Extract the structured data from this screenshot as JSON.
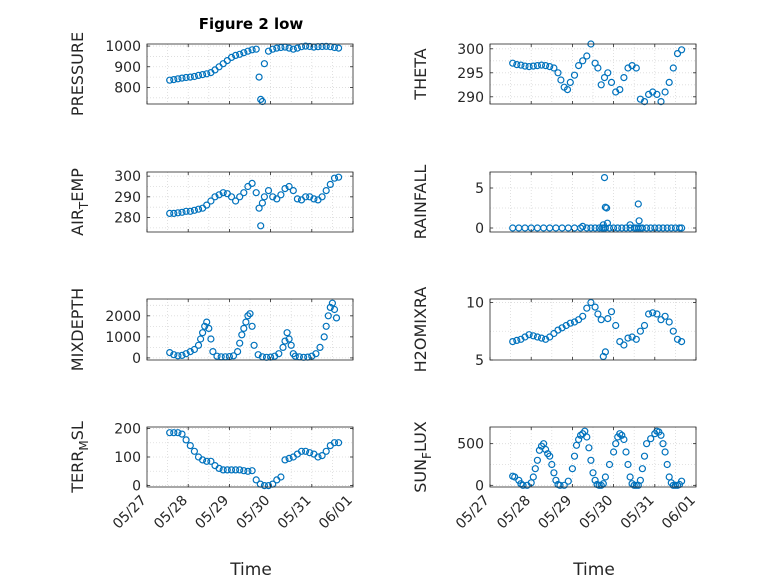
{
  "title": "Figure 2 low",
  "x_axis_label": "Time",
  "x_tick_labels": [
    "05/27",
    "05/28",
    "05/29",
    "05/30",
    "05/31",
    "06/01"
  ],
  "marker_color": "#0072BD",
  "chart_data": [
    {
      "type": "scatter",
      "ylabel": "PRESSURE",
      "ylim": [
        720,
        1010
      ],
      "yticks": [
        800,
        900,
        1000
      ],
      "grid": true,
      "x": [
        0.55,
        0.65,
        0.75,
        0.85,
        0.95,
        1.05,
        1.15,
        1.25,
        1.35,
        1.45,
        1.55,
        1.65,
        1.75,
        1.85,
        1.95,
        2.05,
        2.15,
        2.25,
        2.35,
        2.45,
        2.55,
        2.65,
        2.72,
        2.76,
        2.8,
        2.85,
        2.95,
        3.05,
        3.15,
        3.25,
        3.35,
        3.45,
        3.55,
        3.65,
        3.75,
        3.85,
        3.95,
        4.05,
        4.15,
        4.25,
        4.35,
        4.45,
        4.55,
        4.65
      ],
      "y": [
        835,
        838,
        842,
        845,
        848,
        850,
        853,
        858,
        862,
        866,
        872,
        885,
        900,
        915,
        930,
        945,
        955,
        960,
        968,
        975,
        982,
        985,
        850,
        742,
        732,
        915,
        975,
        985,
        990,
        993,
        995,
        990,
        985,
        990,
        997,
        1000,
        998,
        995,
        997,
        998,
        999,
        997,
        993,
        990
      ]
    },
    {
      "type": "scatter",
      "ylabel": "THETA",
      "ylim": [
        288.5,
        301
      ],
      "yticks": [
        290,
        295,
        300
      ],
      "grid": true,
      "x": [
        0.55,
        0.65,
        0.75,
        0.85,
        0.95,
        1.05,
        1.15,
        1.25,
        1.35,
        1.45,
        1.55,
        1.65,
        1.72,
        1.8,
        1.88,
        1.95,
        2.05,
        2.15,
        2.25,
        2.35,
        2.45,
        2.55,
        2.62,
        2.7,
        2.78,
        2.86,
        2.95,
        3.05,
        3.15,
        3.25,
        3.35,
        3.45,
        3.55,
        3.65,
        3.75,
        3.85,
        3.95,
        4.05,
        4.15,
        4.25,
        4.35,
        4.45,
        4.55,
        4.65
      ],
      "y": [
        297,
        296.7,
        296.6,
        296.4,
        296.3,
        296.4,
        296.5,
        296.6,
        296.5,
        296.3,
        296,
        295,
        293.5,
        292,
        291.5,
        293,
        294.5,
        296.5,
        297.5,
        298.5,
        301,
        297,
        296,
        292.5,
        294,
        295,
        293,
        291,
        291.5,
        294,
        296,
        296.5,
        296,
        289.5,
        289,
        290.5,
        291,
        290.5,
        289,
        291,
        293,
        296,
        299,
        299.8
      ]
    },
    {
      "type": "scatter",
      "ylabel": "AIR_TEMP",
      "ylim": [
        273,
        302
      ],
      "yticks": [
        280,
        290,
        300
      ],
      "grid": true,
      "x": [
        0.55,
        0.65,
        0.75,
        0.85,
        0.95,
        1.05,
        1.15,
        1.25,
        1.35,
        1.45,
        1.55,
        1.65,
        1.75,
        1.85,
        1.95,
        2.05,
        2.15,
        2.25,
        2.35,
        2.45,
        2.55,
        2.65,
        2.72,
        2.76,
        2.8,
        2.85,
        2.95,
        3.05,
        3.15,
        3.25,
        3.35,
        3.45,
        3.55,
        3.65,
        3.75,
        3.85,
        3.95,
        4.05,
        4.15,
        4.25,
        4.35,
        4.45,
        4.55,
        4.65
      ],
      "y": [
        282,
        282,
        282.3,
        282.5,
        283,
        283,
        283.5,
        284,
        284.5,
        286,
        288,
        290,
        291,
        292,
        291.5,
        290,
        288,
        290,
        292,
        295,
        296.5,
        292,
        284.5,
        276,
        287,
        290,
        293,
        290,
        289,
        291,
        294,
        295,
        293,
        289,
        288.5,
        290,
        290,
        289,
        288.5,
        290,
        293,
        296,
        299,
        299.5
      ]
    },
    {
      "type": "scatter",
      "ylabel": "RAINFALL",
      "ylim": [
        -0.5,
        7
      ],
      "yticks": [
        0,
        5
      ],
      "grid": true,
      "x": [
        0.55,
        0.7,
        0.85,
        1.0,
        1.15,
        1.3,
        1.45,
        1.6,
        1.75,
        1.9,
        2.05,
        2.2,
        2.35,
        2.45,
        2.55,
        2.65,
        2.72,
        2.76,
        2.8,
        2.9,
        3.0,
        3.1,
        3.2,
        3.3,
        3.4,
        3.5,
        3.55,
        3.6,
        3.65,
        3.7,
        3.8,
        3.9,
        4.0,
        4.1,
        4.2,
        4.3,
        4.4,
        4.5,
        4.6,
        4.65,
        2.78,
        2.8,
        2.83,
        2.85,
        2.75,
        3.6,
        3.62,
        3.4,
        2.25
      ],
      "y": [
        0,
        0,
        0,
        0,
        0,
        0,
        0,
        0,
        0,
        0,
        0,
        0,
        0,
        0,
        0,
        0,
        0,
        0,
        0,
        0,
        0,
        0,
        0,
        0,
        0,
        0,
        0,
        0,
        0,
        0,
        0,
        0,
        0,
        0,
        0,
        0,
        0,
        0,
        0,
        0,
        6.3,
        2.6,
        2.5,
        0.6,
        0.4,
        3.0,
        0.9,
        0.4,
        0.2
      ]
    },
    {
      "type": "scatter",
      "ylabel": "MIXDEPTH",
      "ylim": [
        -100,
        2800
      ],
      "yticks": [
        0,
        1000,
        2000
      ],
      "grid": true,
      "x": [
        0.55,
        0.65,
        0.75,
        0.85,
        0.95,
        1.05,
        1.15,
        1.25,
        1.3,
        1.35,
        1.4,
        1.45,
        1.5,
        1.55,
        1.6,
        1.7,
        1.8,
        1.9,
        2.0,
        2.1,
        2.2,
        2.25,
        2.3,
        2.35,
        2.4,
        2.45,
        2.5,
        2.55,
        2.6,
        2.7,
        2.8,
        2.9,
        3.0,
        3.1,
        3.2,
        3.3,
        3.35,
        3.4,
        3.45,
        3.5,
        3.55,
        3.6,
        3.7,
        3.8,
        3.9,
        4.0,
        4.1,
        4.2,
        4.3,
        4.35,
        4.4,
        4.45,
        4.5,
        4.55,
        4.6
      ],
      "y": [
        250,
        150,
        100,
        120,
        200,
        300,
        400,
        600,
        900,
        1200,
        1500,
        1700,
        1400,
        900,
        300,
        80,
        50,
        50,
        60,
        100,
        300,
        700,
        1100,
        1400,
        1700,
        2000,
        2100,
        1500,
        600,
        150,
        50,
        30,
        40,
        80,
        200,
        500,
        800,
        1200,
        900,
        600,
        200,
        80,
        50,
        30,
        40,
        80,
        200,
        500,
        1000,
        1500,
        2000,
        2400,
        2600,
        2300,
        1900
      ]
    },
    {
      "type": "scatter",
      "ylabel": "H2OMIXRA",
      "ylim": [
        5,
        10.3
      ],
      "yticks": [
        5,
        10
      ],
      "grid": true,
      "x": [
        0.55,
        0.65,
        0.75,
        0.85,
        0.95,
        1.05,
        1.15,
        1.25,
        1.35,
        1.45,
        1.55,
        1.65,
        1.75,
        1.85,
        1.95,
        2.05,
        2.15,
        2.25,
        2.35,
        2.45,
        2.55,
        2.62,
        2.7,
        2.75,
        2.8,
        2.86,
        2.95,
        3.05,
        3.15,
        3.25,
        3.35,
        3.45,
        3.55,
        3.65,
        3.75,
        3.85,
        3.95,
        4.05,
        4.15,
        4.25,
        4.35,
        4.45,
        4.55,
        4.65
      ],
      "y": [
        6.6,
        6.7,
        6.8,
        7.0,
        7.2,
        7.1,
        7.0,
        6.9,
        6.8,
        7.0,
        7.3,
        7.6,
        7.8,
        8.0,
        8.2,
        8.3,
        8.5,
        8.8,
        9.5,
        10.0,
        9.6,
        9.0,
        8.5,
        5.3,
        5.7,
        8.6,
        9.2,
        8.0,
        6.6,
        6.3,
        6.9,
        7.0,
        6.8,
        7.5,
        8.0,
        9.0,
        9.1,
        9.0,
        8.5,
        8.8,
        8.3,
        7.5,
        6.8,
        6.6
      ]
    },
    {
      "type": "scatter",
      "ylabel": "TERR_MSL",
      "ylim": [
        -5,
        205
      ],
      "yticks": [
        0,
        100,
        200
      ],
      "grid": true,
      "x": [
        0.55,
        0.65,
        0.75,
        0.85,
        0.95,
        1.05,
        1.15,
        1.25,
        1.35,
        1.45,
        1.55,
        1.65,
        1.75,
        1.85,
        1.95,
        2.05,
        2.15,
        2.25,
        2.35,
        2.45,
        2.55,
        2.65,
        2.75,
        2.85,
        2.95,
        3.05,
        3.15,
        3.25,
        3.35,
        3.45,
        3.55,
        3.65,
        3.75,
        3.85,
        3.95,
        4.05,
        4.15,
        4.25,
        4.35,
        4.45,
        4.55,
        4.65
      ],
      "y": [
        185,
        185,
        185,
        180,
        160,
        140,
        120,
        100,
        90,
        85,
        85,
        70,
        60,
        55,
        55,
        55,
        55,
        55,
        52,
        50,
        52,
        20,
        5,
        0,
        0,
        5,
        20,
        30,
        90,
        95,
        100,
        110,
        120,
        120,
        115,
        110,
        100,
        105,
        120,
        140,
        150,
        150
      ]
    },
    {
      "type": "scatter",
      "ylabel": "SUN_FLUX",
      "ylim": [
        -20,
        700
      ],
      "yticks": [
        0,
        500
      ],
      "grid": true,
      "x": [
        0.55,
        0.6,
        0.7,
        0.75,
        0.8,
        0.9,
        1.0,
        1.05,
        1.1,
        1.15,
        1.2,
        1.25,
        1.3,
        1.35,
        1.4,
        1.45,
        1.5,
        1.55,
        1.6,
        1.65,
        1.7,
        1.8,
        1.9,
        2.0,
        2.05,
        2.1,
        2.15,
        2.2,
        2.25,
        2.3,
        2.35,
        2.4,
        2.45,
        2.5,
        2.55,
        2.6,
        2.65,
        2.7,
        2.75,
        2.8,
        2.9,
        3.0,
        3.05,
        3.1,
        3.15,
        3.2,
        3.25,
        3.3,
        3.35,
        3.4,
        3.45,
        3.5,
        3.55,
        3.6,
        3.65,
        3.7,
        3.75,
        3.8,
        3.9,
        4.0,
        4.05,
        4.1,
        4.15,
        4.2,
        4.25,
        4.3,
        4.35,
        4.4,
        4.45,
        4.5,
        4.55,
        4.6,
        4.65
      ],
      "y": [
        110,
        100,
        60,
        20,
        0,
        0,
        30,
        100,
        200,
        300,
        420,
        470,
        500,
        430,
        380,
        350,
        250,
        150,
        60,
        10,
        0,
        0,
        50,
        200,
        350,
        480,
        550,
        600,
        620,
        650,
        580,
        450,
        300,
        150,
        60,
        10,
        0,
        0,
        20,
        100,
        250,
        400,
        500,
        580,
        620,
        600,
        550,
        400,
        250,
        100,
        20,
        0,
        0,
        0,
        60,
        200,
        350,
        500,
        560,
        620,
        650,
        640,
        600,
        500,
        400,
        250,
        100,
        30,
        0,
        0,
        0,
        10,
        50
      ]
    }
  ]
}
